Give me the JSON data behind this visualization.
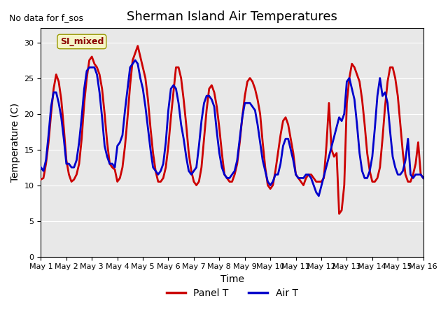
{
  "title": "Sherman Island Air Temperatures",
  "xlabel": "Time",
  "ylabel": "Temperature (C)",
  "no_data_text": "No data for f_sos",
  "legend_label_text": "SI_mixed",
  "ylim": [
    0,
    32
  ],
  "yticks": [
    0,
    5,
    10,
    15,
    20,
    25,
    30
  ],
  "background_color": "#e8e8e8",
  "panel_t_color": "#cc0000",
  "air_t_color": "#0000cc",
  "legend_panel_color": "#cc0000",
  "legend_air_color": "#0000cc",
  "panel_linewidth": 2.0,
  "air_linewidth": 2.0,
  "xtick_labels": [
    "May 1",
    "May 2",
    "May 3",
    "May 4",
    "May 5",
    "May 6",
    "May 7",
    "May 8",
    "May 9",
    "May 10",
    "May 11",
    "May 12",
    "May 13",
    "May 14",
    "May 15",
    "May 16"
  ],
  "panel_t_x": [
    0,
    0.1,
    0.2,
    0.3,
    0.4,
    0.5,
    0.6,
    0.7,
    0.8,
    0.9,
    1.0,
    1.1,
    1.2,
    1.3,
    1.4,
    1.5,
    1.6,
    1.7,
    1.8,
    1.9,
    2.0,
    2.1,
    2.2,
    2.3,
    2.4,
    2.5,
    2.6,
    2.7,
    2.8,
    2.9,
    3.0,
    3.1,
    3.2,
    3.3,
    3.4,
    3.5,
    3.6,
    3.7,
    3.8,
    3.9,
    4.0,
    4.1,
    4.2,
    4.3,
    4.4,
    4.5,
    4.6,
    4.7,
    4.8,
    4.9,
    5.0,
    5.1,
    5.2,
    5.3,
    5.4,
    5.5,
    5.6,
    5.7,
    5.8,
    5.9,
    6.0,
    6.1,
    6.2,
    6.3,
    6.4,
    6.5,
    6.6,
    6.7,
    6.8,
    6.9,
    7.0,
    7.1,
    7.2,
    7.3,
    7.4,
    7.5,
    7.6,
    7.7,
    7.8,
    7.9,
    8.0,
    8.1,
    8.2,
    8.3,
    8.4,
    8.5,
    8.6,
    8.7,
    8.8,
    8.9,
    9.0,
    9.1,
    9.2,
    9.3,
    9.4,
    9.5,
    9.6,
    9.7,
    9.8,
    9.9,
    10.0,
    10.1,
    10.2,
    10.3,
    10.4,
    10.5,
    10.6,
    10.7,
    10.8,
    10.9,
    11.0,
    11.1,
    11.2,
    11.3,
    11.4,
    11.5,
    11.6,
    11.7,
    11.8,
    11.9,
    12.0,
    12.1,
    12.2,
    12.3,
    12.4,
    12.5,
    12.6,
    12.7,
    12.8,
    12.9,
    13.0,
    13.1,
    13.2,
    13.3,
    13.4,
    13.5,
    13.6,
    13.7,
    13.8,
    13.9,
    14.0,
    14.1,
    14.2,
    14.3,
    14.4,
    14.5,
    14.6,
    14.7,
    14.8,
    14.9,
    15.0
  ],
  "panel_t_y": [
    10.8,
    11.0,
    13.0,
    16.0,
    20.0,
    23.5,
    25.5,
    24.5,
    22.0,
    18.0,
    13.5,
    11.5,
    10.5,
    10.8,
    11.5,
    13.0,
    16.5,
    21.5,
    25.0,
    27.5,
    28.0,
    27.0,
    26.5,
    25.5,
    23.5,
    20.0,
    16.0,
    13.0,
    12.5,
    12.2,
    10.5,
    11.0,
    12.5,
    15.5,
    19.5,
    24.0,
    27.5,
    28.5,
    29.5,
    28.0,
    26.5,
    25.0,
    22.0,
    18.0,
    14.5,
    12.0,
    10.5,
    10.5,
    11.0,
    12.5,
    15.5,
    19.5,
    23.0,
    26.5,
    26.5,
    25.0,
    22.0,
    18.5,
    14.5,
    12.0,
    10.5,
    10.0,
    10.5,
    12.5,
    16.5,
    20.5,
    23.5,
    24.0,
    23.0,
    21.0,
    18.0,
    14.5,
    11.5,
    11.0,
    10.5,
    10.5,
    11.5,
    13.0,
    16.0,
    19.5,
    22.5,
    24.5,
    25.0,
    24.5,
    23.5,
    22.0,
    20.0,
    16.0,
    12.5,
    10.0,
    9.5,
    10.0,
    12.0,
    14.5,
    17.0,
    19.0,
    19.5,
    18.5,
    16.5,
    14.5,
    11.5,
    11.0,
    10.5,
    10.0,
    11.0,
    11.5,
    11.5,
    11.0,
    10.5,
    10.5,
    10.5,
    11.0,
    15.5,
    21.5,
    15.0,
    14.0,
    14.5,
    6.0,
    6.5,
    10.0,
    21.5,
    25.0,
    27.0,
    26.5,
    25.5,
    24.5,
    22.0,
    18.5,
    14.5,
    12.0,
    10.5,
    10.5,
    11.0,
    12.5,
    16.5,
    21.0,
    24.5,
    26.5,
    26.5,
    25.0,
    22.5,
    18.5,
    14.5,
    11.5,
    10.5,
    10.5,
    11.5,
    13.0,
    16.0,
    11.5,
    11.0
  ],
  "air_t_x": [
    0.0,
    0.1,
    0.2,
    0.3,
    0.4,
    0.5,
    0.6,
    0.7,
    0.8,
    0.9,
    1.0,
    1.1,
    1.2,
    1.3,
    1.4,
    1.5,
    1.6,
    1.7,
    1.8,
    1.9,
    2.0,
    2.1,
    2.2,
    2.3,
    2.4,
    2.5,
    2.6,
    2.7,
    2.8,
    2.9,
    3.0,
    3.1,
    3.2,
    3.3,
    3.4,
    3.5,
    3.6,
    3.7,
    3.8,
    3.9,
    4.0,
    4.1,
    4.2,
    4.3,
    4.4,
    4.5,
    4.6,
    4.7,
    4.8,
    4.9,
    5.0,
    5.1,
    5.2,
    5.3,
    5.4,
    5.5,
    5.6,
    5.7,
    5.8,
    5.9,
    6.0,
    6.1,
    6.2,
    6.3,
    6.4,
    6.5,
    6.6,
    6.7,
    6.8,
    6.9,
    7.0,
    7.1,
    7.2,
    7.3,
    7.4,
    7.5,
    7.6,
    7.7,
    7.8,
    7.9,
    8.0,
    8.1,
    8.2,
    8.3,
    8.4,
    8.5,
    8.6,
    8.7,
    8.8,
    8.9,
    9.0,
    9.1,
    9.2,
    9.3,
    9.4,
    9.5,
    9.6,
    9.7,
    9.8,
    9.9,
    10.0,
    10.1,
    10.2,
    10.3,
    10.4,
    10.5,
    10.6,
    10.7,
    10.8,
    10.9,
    11.7,
    11.8,
    11.9,
    12.0,
    12.1,
    12.2,
    12.3,
    12.4,
    12.5,
    12.6,
    12.7,
    12.8,
    12.9,
    13.0,
    13.1,
    13.2,
    13.3,
    13.4,
    13.5,
    13.6,
    13.7,
    13.8,
    13.9,
    14.0,
    14.1,
    14.2,
    14.3,
    14.4,
    14.5,
    14.6,
    14.7,
    14.8,
    14.9,
    15.0
  ],
  "air_t_y": [
    12.5,
    12.0,
    13.5,
    17.0,
    21.0,
    23.0,
    23.0,
    21.5,
    19.5,
    16.5,
    13.0,
    13.0,
    12.5,
    12.5,
    13.5,
    16.0,
    19.5,
    23.5,
    26.0,
    26.5,
    26.5,
    26.5,
    25.5,
    23.0,
    19.5,
    15.5,
    14.0,
    13.0,
    13.0,
    12.5,
    15.5,
    16.0,
    17.0,
    20.5,
    23.5,
    26.5,
    27.0,
    27.5,
    27.0,
    25.0,
    23.5,
    21.0,
    18.0,
    15.0,
    12.5,
    12.0,
    11.5,
    12.0,
    13.0,
    16.0,
    20.5,
    23.5,
    24.0,
    23.5,
    21.5,
    18.5,
    16.5,
    14.0,
    12.0,
    11.5,
    12.0,
    12.5,
    15.5,
    19.0,
    21.5,
    22.5,
    22.5,
    22.0,
    21.0,
    17.5,
    14.5,
    12.5,
    11.5,
    11.0,
    11.0,
    11.5,
    12.0,
    13.5,
    16.5,
    19.5,
    21.5,
    21.5,
    21.5,
    21.0,
    20.5,
    18.5,
    16.0,
    13.5,
    12.0,
    10.5,
    10.0,
    10.5,
    11.5,
    11.5,
    13.0,
    15.5,
    16.5,
    16.5,
    15.0,
    13.5,
    11.5,
    11.0,
    11.0,
    11.0,
    11.5,
    11.5,
    11.0,
    10.0,
    9.0,
    8.5,
    19.5,
    19.0,
    20.0,
    24.5,
    25.0,
    23.5,
    22.0,
    18.5,
    14.5,
    12.0,
    11.0,
    11.0,
    12.0,
    14.0,
    18.0,
    22.5,
    25.0,
    22.5,
    23.0,
    21.5,
    17.5,
    14.0,
    12.5,
    11.5,
    11.5,
    12.0,
    13.5,
    16.5,
    11.5,
    11.0,
    11.5,
    11.5,
    11.5,
    11.0
  ]
}
